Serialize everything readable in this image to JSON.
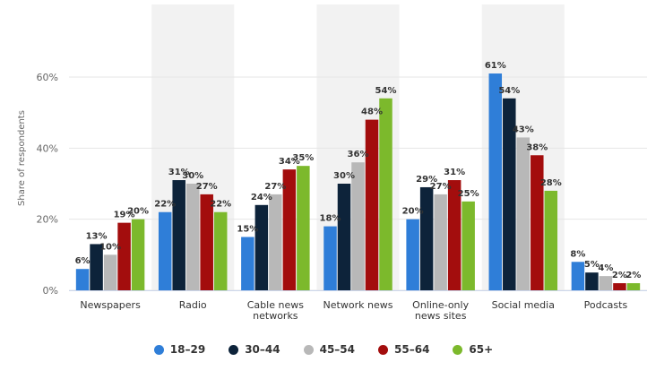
{
  "colors": {
    "series": [
      "#2f7ed8",
      "#0d233a",
      "#b8b8b8",
      "#a30d0d",
      "#7cb92c"
    ],
    "grid": "#e6e6e6",
    "band": "#f2f2f2",
    "label": "#333333",
    "axis_text": "#666666"
  },
  "chart_data": {
    "type": "bar",
    "title": "",
    "xlabel": "",
    "ylabel": "Share of respondents",
    "ylim": [
      0,
      80
    ],
    "yticks": [
      0,
      20,
      40,
      60
    ],
    "ytick_labels": [
      "0%",
      "20%",
      "40%",
      "60%"
    ],
    "grid": true,
    "legend_position": "bottom-center",
    "categories": [
      "Newspapers",
      "Radio",
      "Cable news networks",
      "Network news",
      "Online-only news sites",
      "Social media",
      "Podcasts"
    ],
    "category_label_lines": [
      [
        "Newspapers"
      ],
      [
        "Radio"
      ],
      [
        "Cable news",
        "networks"
      ],
      [
        "Network news"
      ],
      [
        "Online-only",
        "news sites"
      ],
      [
        "Social media"
      ],
      [
        "Podcasts"
      ]
    ],
    "series": [
      {
        "name": "18-29",
        "values": [
          6,
          22,
          15,
          18,
          20,
          61,
          8
        ],
        "labels": [
          "6%",
          "22%",
          "15%",
          "18%",
          "20%",
          "61%",
          "8%"
        ]
      },
      {
        "name": "30-44",
        "values": [
          13,
          31,
          24,
          30,
          29,
          54,
          5
        ],
        "labels": [
          "13%",
          "31%",
          "24%",
          "30%",
          "29%",
          "54%",
          "5%"
        ]
      },
      {
        "name": "45-54",
        "values": [
          10,
          30,
          27,
          36,
          27,
          43,
          4
        ],
        "labels": [
          "10%",
          "30%",
          "27%",
          "36%",
          "27%",
          "43%",
          "4%"
        ]
      },
      {
        "name": "55-64",
        "values": [
          19,
          27,
          34,
          48,
          31,
          38,
          2
        ],
        "labels": [
          "19%",
          "27%",
          "34%",
          "48%",
          "31%",
          "38%",
          "2%"
        ]
      },
      {
        "name": "65+",
        "values": [
          20,
          22,
          35,
          54,
          25,
          28,
          2
        ],
        "labels": [
          "20%",
          "22%",
          "35%",
          "54%",
          "25%",
          "28%",
          "2%"
        ]
      }
    ]
  },
  "legend": {
    "items": [
      {
        "label": "18–29"
      },
      {
        "label": "30–44"
      },
      {
        "label": "45–54"
      },
      {
        "label": "55–64"
      },
      {
        "label": "65+"
      }
    ]
  }
}
